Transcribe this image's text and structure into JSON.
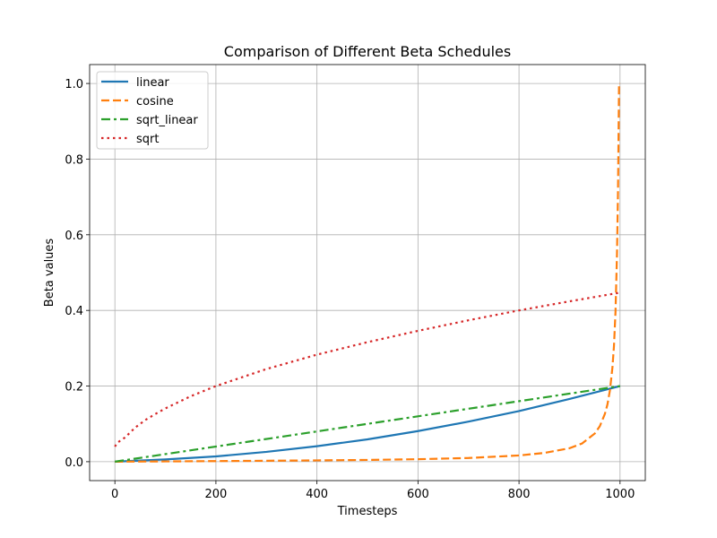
{
  "chart_data": {
    "type": "line",
    "title": "Comparison of Different Beta Schedules",
    "xlabel": "Timesteps",
    "ylabel": "Beta values",
    "xlim": [
      -50,
      1050
    ],
    "ylim": [
      -0.05,
      1.05
    ],
    "xticks": [
      0,
      200,
      400,
      600,
      800,
      1000
    ],
    "yticks": [
      0.0,
      0.2,
      0.4,
      0.6,
      0.8,
      1.0
    ],
    "xtick_labels": [
      "0",
      "200",
      "400",
      "600",
      "800",
      "1000"
    ],
    "ytick_labels": [
      "0.0",
      "0.2",
      "0.4",
      "0.6",
      "0.8",
      "1.0"
    ],
    "grid": true,
    "legend_position": "top-left",
    "series": [
      {
        "name": "linear",
        "color": "#1f77b4",
        "style": "solid",
        "x": [
          0,
          100,
          200,
          300,
          400,
          500,
          600,
          700,
          800,
          900,
          1000
        ],
        "y": [
          0.0001,
          0.006,
          0.014,
          0.026,
          0.041,
          0.059,
          0.081,
          0.106,
          0.134,
          0.166,
          0.2
        ]
      },
      {
        "name": "cosine",
        "color": "#ff7f0e",
        "style": "dashed",
        "x": [
          0,
          100,
          200,
          300,
          400,
          500,
          600,
          700,
          800,
          850,
          900,
          925,
          950,
          960,
          970,
          975,
          980,
          985,
          988,
          991,
          994,
          996,
          998,
          999,
          1000
        ],
        "y": [
          4e-05,
          0.0008,
          0.0016,
          0.0025,
          0.0035,
          0.0047,
          0.0066,
          0.0098,
          0.0165,
          0.0232,
          0.0356,
          0.0483,
          0.0746,
          0.094,
          0.1264,
          0.151,
          0.1888,
          0.2498,
          0.3065,
          0.3957,
          0.5513,
          0.7166,
          1.0,
          1.0,
          1.0
        ]
      },
      {
        "name": "sqrt_linear",
        "color": "#2ca02c",
        "style": "dashdot",
        "x": [
          0,
          1000
        ],
        "y": [
          0.0001,
          0.2
        ]
      },
      {
        "name": "sqrt",
        "color": "#d62728",
        "style": "dotted",
        "x": [
          0,
          5,
          10,
          20,
          40,
          60,
          80,
          100,
          150,
          200,
          300,
          400,
          500,
          600,
          700,
          800,
          900,
          1000
        ],
        "y": [
          0.04,
          0.05,
          0.055,
          0.064,
          0.09,
          0.11,
          0.126,
          0.141,
          0.173,
          0.2,
          0.245,
          0.283,
          0.316,
          0.346,
          0.374,
          0.4,
          0.424,
          0.447
        ]
      }
    ]
  }
}
